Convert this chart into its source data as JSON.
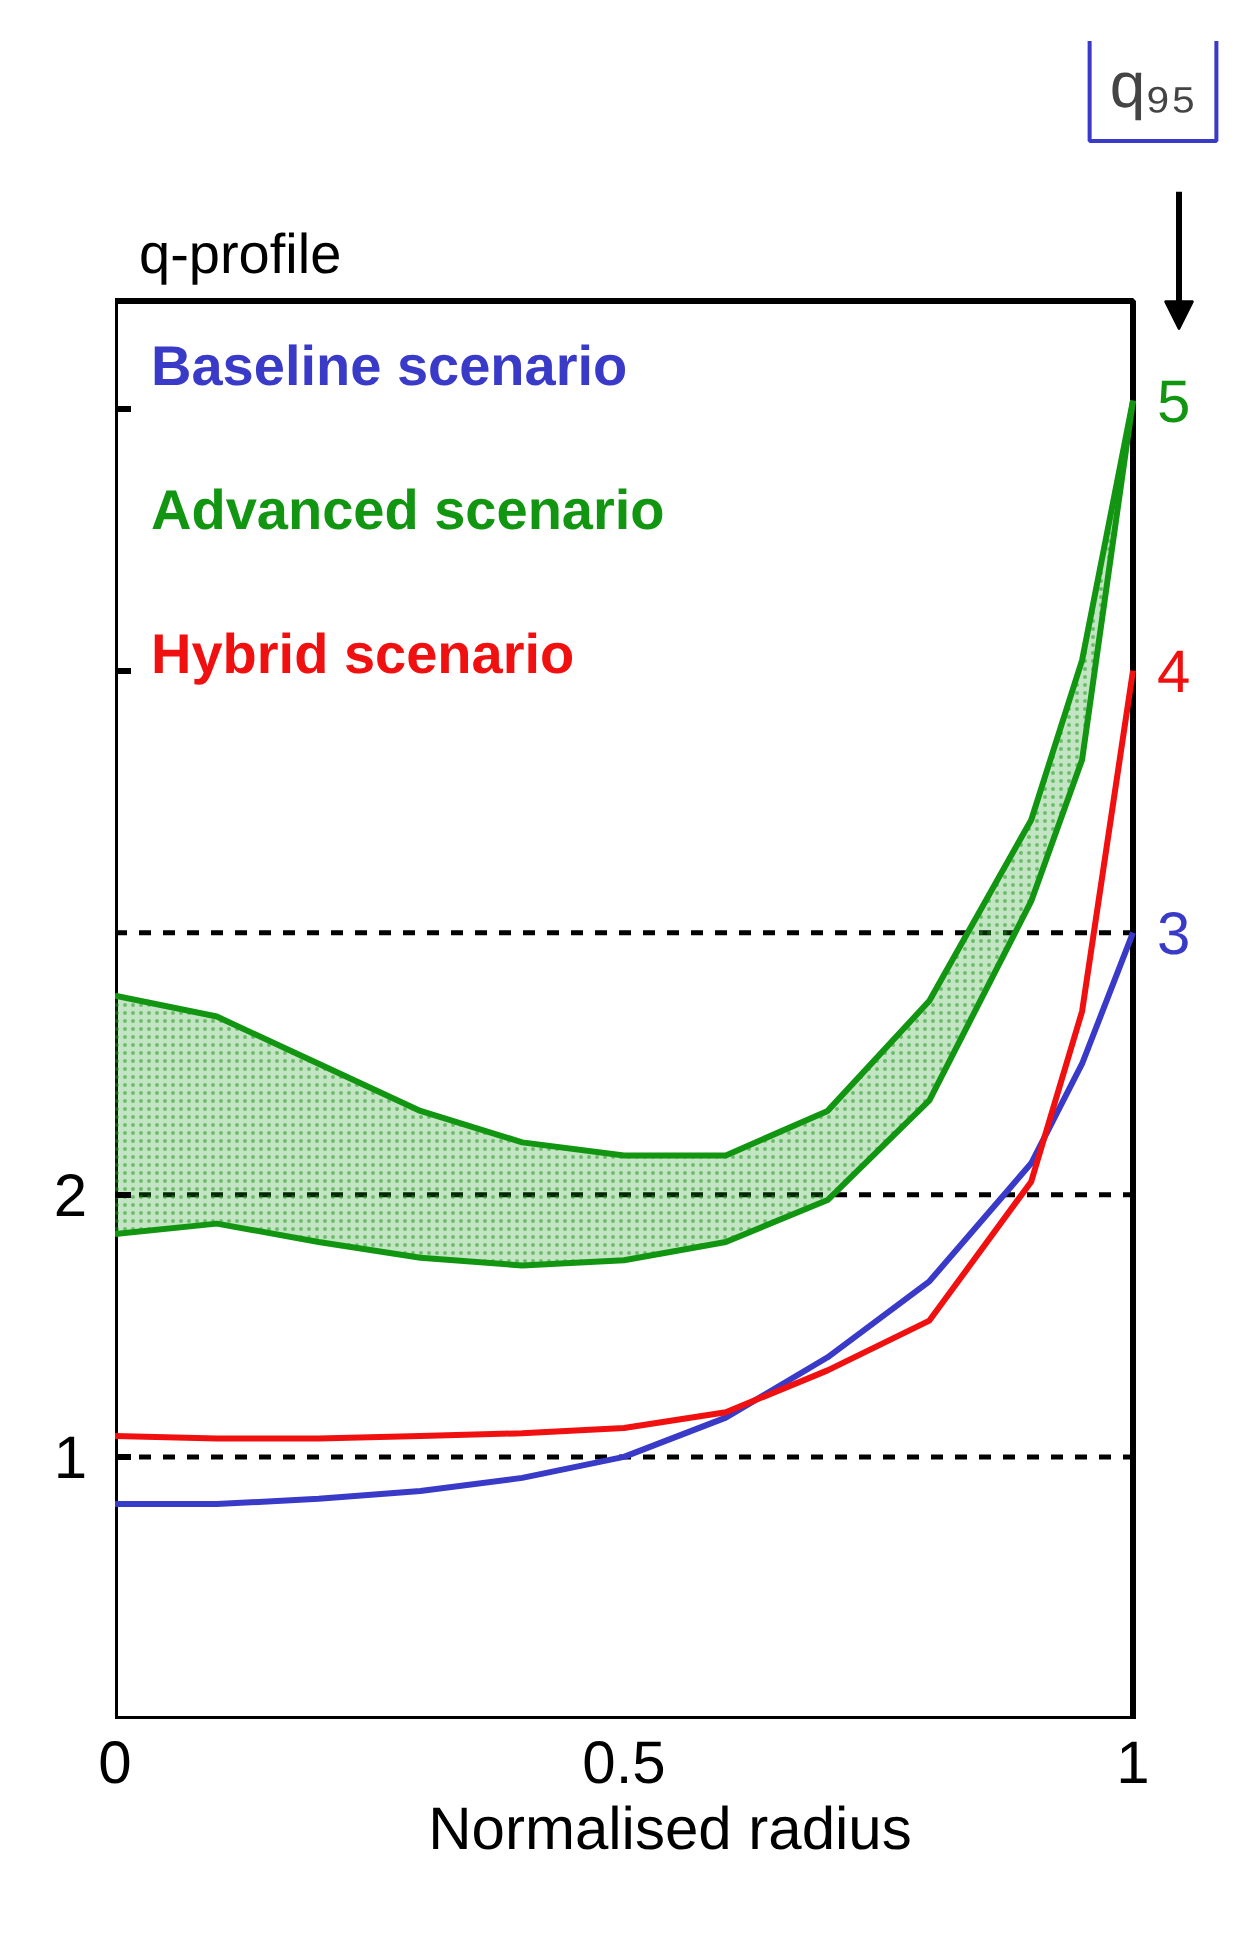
{
  "chart_data": {
    "type": "line",
    "ylabel": "q-profile",
    "xlabel": "Normalised radius",
    "xlim": [
      0,
      1
    ],
    "ylim": [
      0,
      5.41
    ],
    "xticks": [
      0,
      0.5,
      1
    ],
    "yticks": [
      1,
      2,
      {
        "value": 4,
        "label": null
      },
      {
        "value": 5,
        "label": null
      }
    ],
    "grid": false,
    "line_style": "solid",
    "x": [
      0,
      0.1,
      0.2,
      0.3,
      0.4,
      0.5,
      0.6,
      0.7,
      0.8,
      0.9,
      0.95,
      1
    ],
    "series": [
      {
        "name": "Baseline scenario",
        "color": "#3a3ac8",
        "values": [
          0.82,
          0.82,
          0.84,
          0.87,
          0.92,
          1.0,
          1.15,
          1.38,
          1.67,
          2.12,
          2.5,
          3.0
        ]
      },
      {
        "name": "Advanced scenario",
        "color": "#129612",
        "values": [
          2.76,
          2.68,
          2.5,
          2.32,
          2.2,
          2.15,
          2.15,
          2.32,
          2.74,
          3.43,
          4.04,
          5.03
        ],
        "lower": [
          1.85,
          1.89,
          1.82,
          1.76,
          1.73,
          1.75,
          1.82,
          1.98,
          2.36,
          3.12,
          3.66,
          5.03
        ],
        "upper": [
          2.76,
          2.68,
          2.5,
          2.32,
          2.2,
          2.15,
          2.15,
          2.32,
          2.74,
          3.43,
          4.04,
          5.03
        ]
      },
      {
        "color": "#129612",
        "values": [
          1.85,
          1.89,
          1.82,
          1.76,
          1.73,
          1.75,
          1.82,
          1.98,
          2.36,
          3.12,
          3.66,
          5.03
        ]
      },
      {
        "name": "Hybrid scenario",
        "color": "#f01010",
        "values": [
          1.08,
          1.07,
          1.07,
          1.08,
          1.09,
          1.11,
          1.17,
          1.33,
          1.52,
          2.05,
          2.7,
          4.0
        ]
      }
    ],
    "ref_lines": [
      {
        "axis": "y",
        "value": 1,
        "color": "#000000",
        "line_style": "dashed"
      },
      {
        "axis": "y",
        "value": 2,
        "color": "#000000",
        "line_style": "dashed"
      },
      {
        "axis": "y",
        "value": 3,
        "color": "#000000",
        "line_style": "dashed"
      }
    ],
    "annotations": [
      "q₉₅",
      "5",
      "4",
      "3"
    ]
  }
}
